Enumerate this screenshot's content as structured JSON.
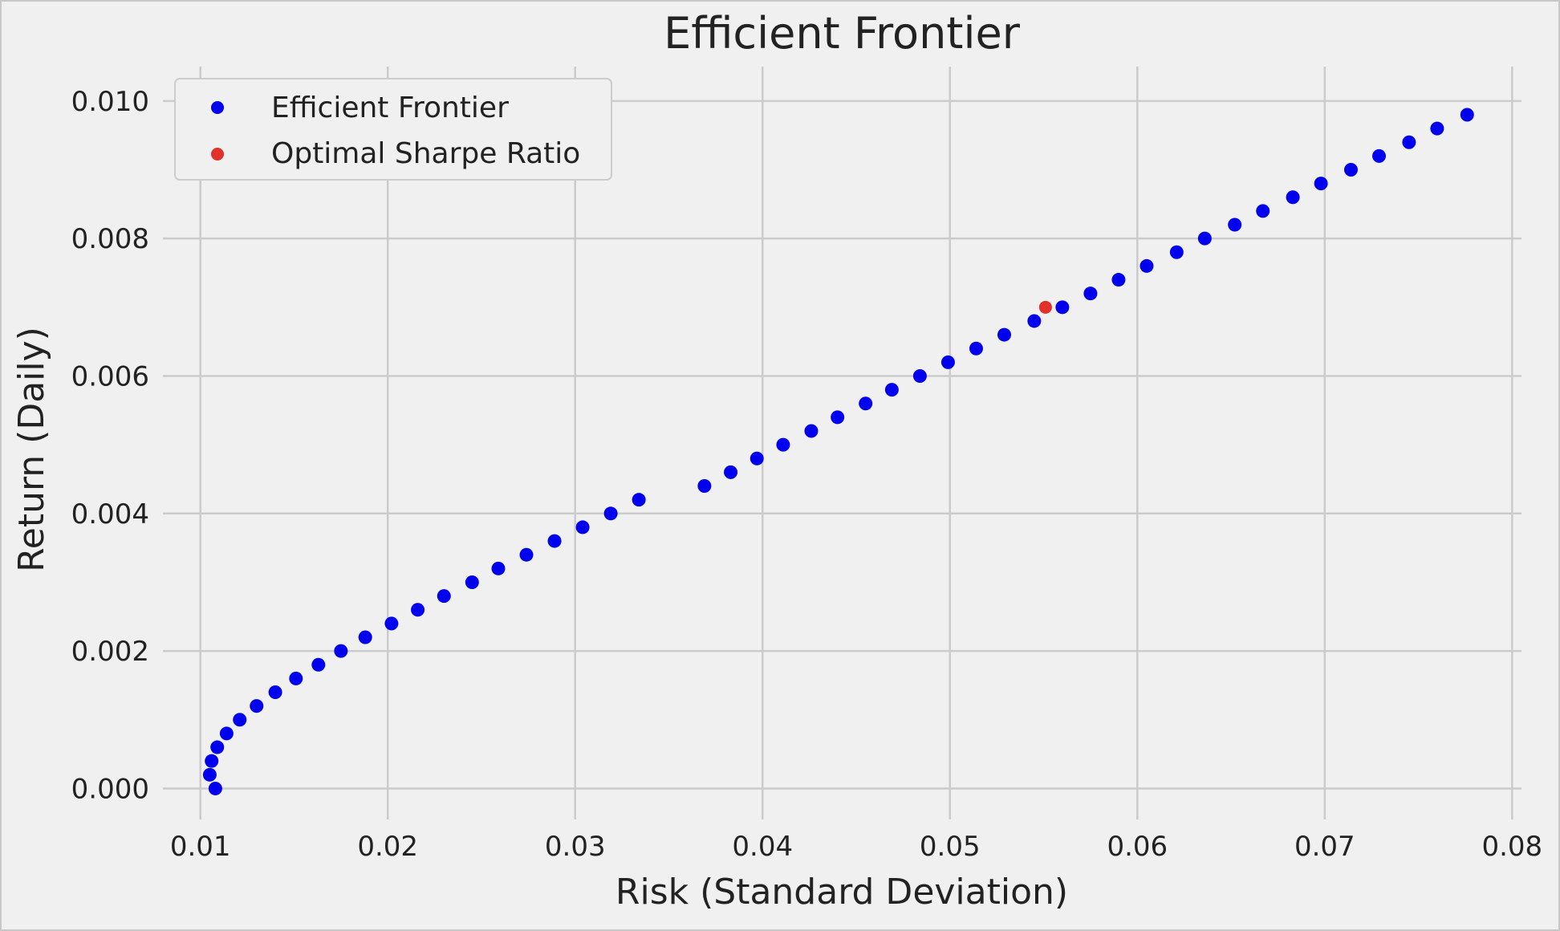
{
  "chart_data": {
    "type": "scatter",
    "title": "Efficient Frontier",
    "xlabel": "Risk (Standard Deviation)",
    "ylabel": "Return (Daily)",
    "xlim": [
      0.008,
      0.0805
    ],
    "ylim": [
      -0.00045,
      0.0105
    ],
    "xticks": [
      0.01,
      0.02,
      0.03,
      0.04,
      0.05,
      0.06,
      0.07,
      0.08
    ],
    "xtick_labels": [
      "0.01",
      "0.02",
      "0.03",
      "0.04",
      "0.05",
      "0.06",
      "0.07",
      "0.08"
    ],
    "yticks": [
      0.0,
      0.002,
      0.004,
      0.006,
      0.008,
      0.01
    ],
    "ytick_labels": [
      "0.000",
      "0.002",
      "0.004",
      "0.006",
      "0.008",
      "0.010"
    ],
    "grid": true,
    "legend_position": "top-left",
    "background_color": "#f0f0f0",
    "grid_color": "#cbcbcb",
    "series": [
      {
        "name": "Efficient Frontier",
        "color": "#0000ee",
        "points": [
          [
            0.0108,
            0.0
          ],
          [
            0.0105,
            0.0002
          ],
          [
            0.0106,
            0.0004
          ],
          [
            0.0109,
            0.0006
          ],
          [
            0.0114,
            0.0008
          ],
          [
            0.0121,
            0.001
          ],
          [
            0.013,
            0.0012
          ],
          [
            0.014,
            0.0014
          ],
          [
            0.0151,
            0.0016
          ],
          [
            0.0163,
            0.0018
          ],
          [
            0.0175,
            0.002
          ],
          [
            0.0188,
            0.0022
          ],
          [
            0.0202,
            0.0024
          ],
          [
            0.0216,
            0.0026
          ],
          [
            0.023,
            0.0028
          ],
          [
            0.0245,
            0.003
          ],
          [
            0.0259,
            0.0032
          ],
          [
            0.0274,
            0.0034
          ],
          [
            0.0289,
            0.0036
          ],
          [
            0.0304,
            0.0038
          ],
          [
            0.0319,
            0.004
          ],
          [
            0.0334,
            0.0042
          ],
          [
            0.0369,
            0.0044
          ],
          [
            0.0383,
            0.0046
          ],
          [
            0.0397,
            0.0048
          ],
          [
            0.0411,
            0.005
          ],
          [
            0.0426,
            0.0052
          ],
          [
            0.044,
            0.0054
          ],
          [
            0.0455,
            0.0056
          ],
          [
            0.0469,
            0.0058
          ],
          [
            0.0484,
            0.006
          ],
          [
            0.0499,
            0.0062
          ],
          [
            0.0514,
            0.0064
          ],
          [
            0.0529,
            0.0066
          ],
          [
            0.0545,
            0.0068
          ],
          [
            0.056,
            0.007
          ],
          [
            0.0575,
            0.0072
          ],
          [
            0.059,
            0.0074
          ],
          [
            0.0605,
            0.0076
          ],
          [
            0.0621,
            0.0078
          ],
          [
            0.0636,
            0.008
          ],
          [
            0.0652,
            0.0082
          ],
          [
            0.0667,
            0.0084
          ],
          [
            0.0683,
            0.0086
          ],
          [
            0.0698,
            0.0088
          ],
          [
            0.0714,
            0.009
          ],
          [
            0.0729,
            0.0092
          ],
          [
            0.0745,
            0.0094
          ],
          [
            0.076,
            0.0096
          ],
          [
            0.0776,
            0.0098
          ]
        ]
      },
      {
        "name": "Optimal Sharpe Ratio",
        "color": "#e2302b",
        "points": [
          [
            0.0551,
            0.007
          ]
        ]
      }
    ]
  }
}
